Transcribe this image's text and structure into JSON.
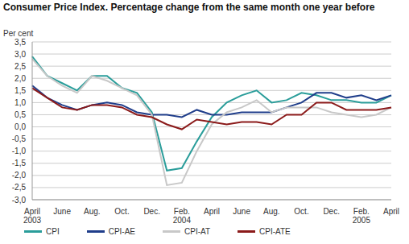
{
  "chart_data": {
    "type": "line",
    "title": "Consumer Price Index. Percentage change from the same month one year before",
    "y_label": "Per cent",
    "categories": [
      "April 2003",
      null,
      "June",
      null,
      "Aug.",
      null,
      "Oct.",
      null,
      "Dec.",
      null,
      "Feb. 2004",
      null,
      "April",
      null,
      "June",
      null,
      "Aug.",
      null,
      "Oct.",
      null,
      "Dec.",
      null,
      "Feb. 2005",
      null,
      "April"
    ],
    "series": [
      {
        "name": "CPI",
        "color": "#2a9d9a",
        "values": [
          2.9,
          2.1,
          1.8,
          1.5,
          2.1,
          2.1,
          1.6,
          1.4,
          0.6,
          -1.8,
          -1.7,
          -0.6,
          0.4,
          1.0,
          1.3,
          1.5,
          1.0,
          1.1,
          1.4,
          1.3,
          1.1,
          1.1,
          1.0,
          1.0,
          1.3
        ]
      },
      {
        "name": "CPI-AE",
        "color": "#1f3d8a",
        "values": [
          1.7,
          1.2,
          0.9,
          0.7,
          0.9,
          1.0,
          0.9,
          0.6,
          0.5,
          0.5,
          0.4,
          0.7,
          0.5,
          0.5,
          0.6,
          0.6,
          0.6,
          0.8,
          1.0,
          1.4,
          1.4,
          1.2,
          1.3,
          1.1,
          1.3
        ]
      },
      {
        "name": "CPI-AT",
        "color": "#c8c8c8",
        "values": [
          2.8,
          2.1,
          1.7,
          1.4,
          2.1,
          1.9,
          1.6,
          1.3,
          0.5,
          -2.4,
          -2.3,
          -1.0,
          0.1,
          0.6,
          0.8,
          1.1,
          0.6,
          0.8,
          0.8,
          0.8,
          0.6,
          0.5,
          0.4,
          0.5,
          0.8
        ]
      },
      {
        "name": "CPI-ATE",
        "color": "#8b1a1a",
        "values": [
          1.6,
          1.2,
          0.8,
          0.7,
          0.9,
          0.9,
          0.8,
          0.5,
          0.4,
          0.1,
          -0.1,
          0.3,
          0.2,
          0.1,
          0.2,
          0.2,
          0.1,
          0.5,
          0.5,
          1.0,
          1.0,
          0.7,
          0.7,
          0.7,
          0.8
        ]
      }
    ],
    "ylim": [
      -3.0,
      3.5
    ],
    "yticks": [
      {
        "value": -3.0,
        "label": "-3,0"
      },
      {
        "value": -2.5,
        "label": "-2,5"
      },
      {
        "value": -2.0,
        "label": "-2,0"
      },
      {
        "value": -1.5,
        "label": "-1,5"
      },
      {
        "value": -1.0,
        "label": "-1,0"
      },
      {
        "value": -0.5,
        "label": "-0,5"
      },
      {
        "value": 0.0,
        "label": "0,0"
      },
      {
        "value": 0.5,
        "label": "0,5"
      },
      {
        "value": 1.0,
        "label": "1,0"
      },
      {
        "value": 1.5,
        "label": "1,5"
      },
      {
        "value": 2.0,
        "label": "2,0"
      },
      {
        "value": 2.5,
        "label": "2,5"
      },
      {
        "value": 3.0,
        "label": "3,0"
      },
      {
        "value": 3.5,
        "label": "3,5"
      }
    ],
    "grid": true,
    "legend": "bottom"
  }
}
